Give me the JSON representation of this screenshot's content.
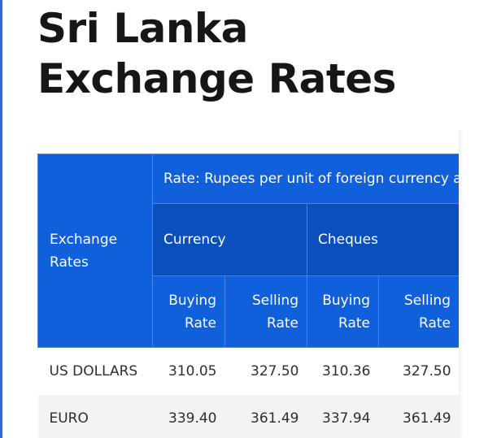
{
  "page": {
    "title": "Sri Lanka Exchange Rates"
  },
  "table": {
    "row_header": "Exchange Rates",
    "rate_note": "Rate: Rupees per unit of foreign currency as",
    "groups": [
      "Currency",
      "Cheques"
    ],
    "sub_headers": [
      "Buying Rate",
      "Selling Rate",
      "Buying Rate",
      "Selling Rate"
    ],
    "rows": [
      {
        "currency": "US DOLLARS",
        "values": [
          "310.05",
          "327.50",
          "310.36",
          "327.50"
        ]
      },
      {
        "currency": "EURO",
        "values": [
          "339.40",
          "361.49",
          "337.94",
          "361.49"
        ]
      }
    ]
  },
  "colors": {
    "header_bright": "#1060dc",
    "header_mid": "#0a55c7",
    "header_dark": "#0a4fbb",
    "row_alt": "#f3f3f3",
    "title_text": "#161616"
  }
}
